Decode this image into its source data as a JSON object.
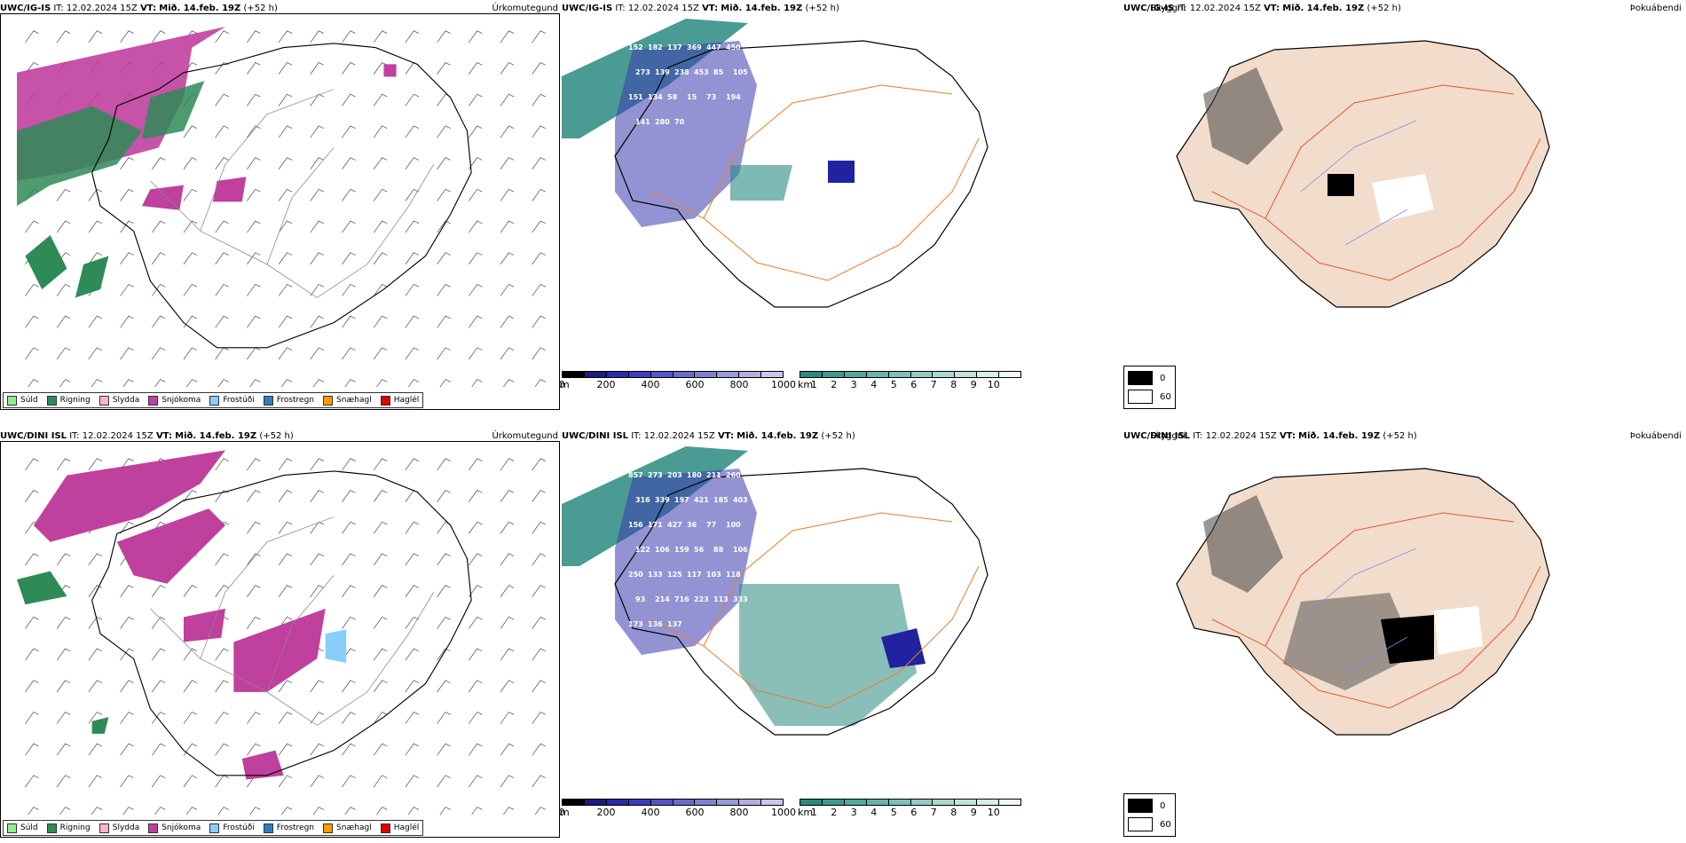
{
  "panels": [
    {
      "model": "UWC/IG-IS",
      "it": "IT: 12.02.2024 15Z",
      "vt_label": "VT:",
      "vt": "Mið. 14.feb. 19Z",
      "lead": "(+52 h)",
      "ptype": "Úrkomutegund",
      "visib": "Skyggni",
      "fog": "Þokuábendi"
    },
    {
      "model": "UWC/DINI ISL",
      "it": "IT: 12.02.2024 15Z",
      "vt_label": "VT:",
      "vt": "Mið. 14.feb. 19Z",
      "lead": "(+52 h)",
      "ptype": "Úrkomutegund",
      "visib": "Skyggni",
      "fog": "Þokuábendi"
    }
  ],
  "ptype_legend": [
    {
      "label": "Súld",
      "color": "#90EE90"
    },
    {
      "label": "Rigning",
      "color": "#2E8B57"
    },
    {
      "label": "Slydda",
      "color": "#FFB6C1"
    },
    {
      "label": "Snjókoma",
      "color": "#C0409E"
    },
    {
      "label": "Frostúði",
      "color": "#87CEFA"
    },
    {
      "label": "Frostregn",
      "color": "#2E7FBF"
    },
    {
      "label": "Snæhagl",
      "color": "#FF9900"
    },
    {
      "label": "Haglél",
      "color": "#E00000"
    }
  ],
  "visib_scale_m": {
    "unit": "m",
    "ticks": [
      "0",
      "200",
      "400",
      "600",
      "800",
      "1000"
    ],
    "colors": [
      "#000",
      "#1a1a80",
      "#2a2ab0",
      "#3d3dc0",
      "#5555c8",
      "#6a6acc",
      "#8080d0",
      "#9a9ad8",
      "#b0b0e0",
      "#c8c8ee"
    ]
  },
  "visib_scale_km": {
    "unit": "km",
    "ticks": [
      "1",
      "2",
      "3",
      "4",
      "5",
      "6",
      "7",
      "8",
      "9",
      "10"
    ],
    "colors": [
      "#2a8a80",
      "#3c9a90",
      "#52a89e",
      "#68b4aa",
      "#7ec0b8",
      "#94ccc4",
      "#aad8d0",
      "#c0e2dc",
      "#d6eee8",
      "#eef8f6"
    ]
  },
  "fog_legend": [
    {
      "label": "0",
      "color": "#000000"
    },
    {
      "label": "60",
      "color": "#ffffff"
    }
  ],
  "visib_labels_top": [
    "152",
    "182",
    "137",
    "369",
    "447",
    "450",
    "273",
    "139",
    "238",
    "453",
    "85",
    "105",
    "151",
    "134",
    "58",
    "15",
    "73",
    "194",
    "141",
    "280",
    "70"
  ],
  "visib_labels_bottom": [
    "857",
    "273",
    "203",
    "180",
    "211",
    "260",
    "316",
    "339",
    "197",
    "421",
    "185",
    "403",
    "156",
    "171",
    "427",
    "36",
    "77",
    "100",
    "122",
    "106",
    "159",
    "56",
    "88",
    "106",
    "250",
    "133",
    "125",
    "117",
    "103",
    "118",
    "93",
    "214",
    "716",
    "223",
    "113",
    "333",
    "173",
    "136",
    "137"
  ]
}
